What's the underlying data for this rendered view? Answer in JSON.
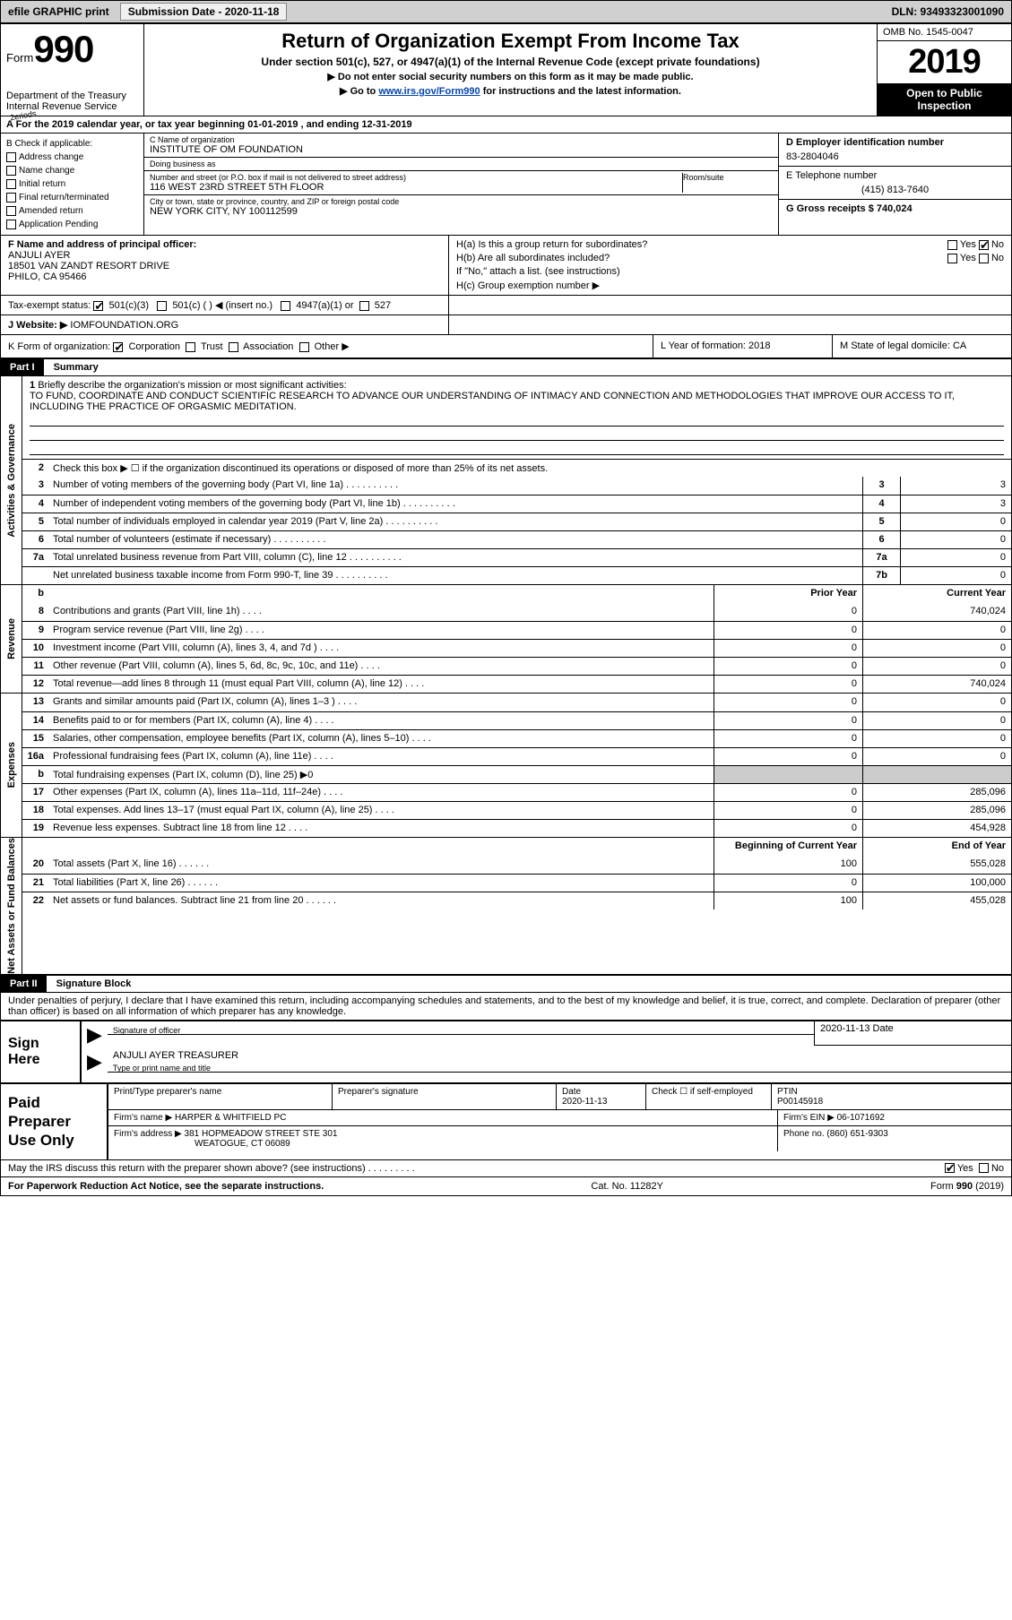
{
  "topbar": {
    "efile": "efile GRAPHIC print",
    "submission_label": "Submission Date - 2020-11-18",
    "dln": "DLN: 93493323001090"
  },
  "header": {
    "form_prefix": "Form",
    "form_number": "990",
    "dept": "Department of the Treasury",
    "irs": "Internal Revenue Service",
    "title": "Return of Organization Exempt From Income Tax",
    "sub1": "Under section 501(c), 527, or 4947(a)(1) of the Internal Revenue Code (except private foundations)",
    "sub2": "▶ Do not enter social security numbers on this form as it may be made public.",
    "sub3_pre": "▶ Go to ",
    "sub3_link": "www.irs.gov/Form990",
    "sub3_post": " for instructions and the latest information.",
    "omb": "OMB No. 1545-0047",
    "year": "2019",
    "inspection1": "Open to Public",
    "inspection2": "Inspection"
  },
  "period": {
    "overlay": "2eriods",
    "text": "A For the 2019 calendar year, or tax year beginning 01-01-2019     , and ending 12-31-2019"
  },
  "boxB": {
    "title": "B Check if applicable:",
    "items": [
      "Address change",
      "Name change",
      "Initial return",
      "Final return/terminated",
      "Amended return",
      "Application Pending"
    ]
  },
  "boxC": {
    "name_lbl": "C Name of organization",
    "name": "INSTITUTE OF OM FOUNDATION",
    "dba_lbl": "Doing business as",
    "dba": "",
    "addr_lbl": "Number and street (or P.O. box if mail is not delivered to street address)",
    "room_lbl": "Room/suite",
    "addr": "116 WEST 23RD STREET 5TH FLOOR",
    "city_lbl": "City or town, state or province, country, and ZIP or foreign postal code",
    "city": "NEW YORK CITY, NY  100112599"
  },
  "boxD": {
    "lbl": "D Employer identification number",
    "val": "83-2804046"
  },
  "boxE": {
    "lbl": "E Telephone number",
    "val": "(415) 813-7640"
  },
  "boxG": {
    "lbl": "G Gross receipts $ 740,024"
  },
  "boxF": {
    "lbl": "F Name and address of principal officer:",
    "name": "ANJULI AYER",
    "addr1": "18501 VAN ZANDT RESORT DRIVE",
    "addr2": "PHILO, CA  95466"
  },
  "boxH": {
    "a": "H(a)  Is this a group return for subordinates?",
    "a_yes": "Yes",
    "a_no": "No",
    "b": "H(b)  Are all subordinates included?",
    "b_yes": "Yes",
    "b_no": "No",
    "b_note": "If \"No,\" attach a list. (see instructions)",
    "c": "H(c)  Group exemption number ▶"
  },
  "boxI": {
    "lbl": "Tax-exempt status:",
    "o1": "501(c)(3)",
    "o2": "501(c) (  ) ◀ (insert no.)",
    "o3": "4947(a)(1) or",
    "o4": "527"
  },
  "boxJ": {
    "lbl": "J   Website: ▶",
    "val": "IOMFOUNDATION.ORG"
  },
  "boxK": {
    "lbl": "K Form of organization:",
    "o1": "Corporation",
    "o2": "Trust",
    "o3": "Association",
    "o4": "Other ▶"
  },
  "boxL": {
    "lbl": "L Year of formation: 2018"
  },
  "boxM": {
    "lbl": "M State of legal domicile: CA"
  },
  "part1": {
    "hdr": "Part I",
    "title": "Summary"
  },
  "sections": {
    "ag": "Activities & Governance",
    "rev": "Revenue",
    "exp": "Expenses",
    "nab": "Net Assets or Fund Balances"
  },
  "line1": {
    "num": "1",
    "lbl": "Briefly describe the organization's mission or most significant activities:",
    "text": "TO FUND, COORDINATE AND CONDUCT SCIENTIFIC RESEARCH TO ADVANCE OUR UNDERSTANDING OF INTIMACY AND CONNECTION AND METHODOLOGIES THAT IMPROVE OUR ACCESS TO IT, INCLUDING THE PRACTICE OF ORGASMIC MEDITATION."
  },
  "line2": {
    "num": "2",
    "lbl": "Check this box ▶ ☐  if the organization discontinued its operations or disposed of more than 25% of its net assets."
  },
  "ag_lines": [
    {
      "num": "3",
      "lbl": "Number of voting members of the governing body (Part VI, line 1a)",
      "box": "3",
      "val": "3"
    },
    {
      "num": "4",
      "lbl": "Number of independent voting members of the governing body (Part VI, line 1b)",
      "box": "4",
      "val": "3"
    },
    {
      "num": "5",
      "lbl": "Total number of individuals employed in calendar year 2019 (Part V, line 2a)",
      "box": "5",
      "val": "0"
    },
    {
      "num": "6",
      "lbl": "Total number of volunteers (estimate if necessary)",
      "box": "6",
      "val": "0"
    },
    {
      "num": "7a",
      "lbl": "Total unrelated business revenue from Part VIII, column (C), line 12",
      "box": "7a",
      "val": "0"
    },
    {
      "num": "",
      "lbl": "Net unrelated business taxable income from Form 990-T, line 39",
      "box": "7b",
      "val": "0"
    }
  ],
  "col_hdrs": {
    "b": "b",
    "prior": "Prior Year",
    "current": "Current Year"
  },
  "rev_lines": [
    {
      "num": "8",
      "lbl": "Contributions and grants (Part VIII, line 1h)",
      "prior": "0",
      "cur": "740,024"
    },
    {
      "num": "9",
      "lbl": "Program service revenue (Part VIII, line 2g)",
      "prior": "0",
      "cur": "0"
    },
    {
      "num": "10",
      "lbl": "Investment income (Part VIII, column (A), lines 3, 4, and 7d )",
      "prior": "0",
      "cur": "0"
    },
    {
      "num": "11",
      "lbl": "Other revenue (Part VIII, column (A), lines 5, 6d, 8c, 9c, 10c, and 11e)",
      "prior": "0",
      "cur": "0"
    },
    {
      "num": "12",
      "lbl": "Total revenue—add lines 8 through 11 (must equal Part VIII, column (A), line 12)",
      "prior": "0",
      "cur": "740,024"
    }
  ],
  "exp_lines": [
    {
      "num": "13",
      "lbl": "Grants and similar amounts paid (Part IX, column (A), lines 1–3 )",
      "prior": "0",
      "cur": "0"
    },
    {
      "num": "14",
      "lbl": "Benefits paid to or for members (Part IX, column (A), line 4)",
      "prior": "0",
      "cur": "0"
    },
    {
      "num": "15",
      "lbl": "Salaries, other compensation, employee benefits (Part IX, column (A), lines 5–10)",
      "prior": "0",
      "cur": "0"
    },
    {
      "num": "16a",
      "lbl": "Professional fundraising fees (Part IX, column (A), line 11e)",
      "prior": "0",
      "cur": "0"
    },
    {
      "num": "b",
      "lbl": "Total fundraising expenses (Part IX, column (D), line 25) ▶0",
      "prior": "",
      "cur": "",
      "shade": true
    },
    {
      "num": "17",
      "lbl": "Other expenses (Part IX, column (A), lines 11a–11d, 11f–24e)",
      "prior": "0",
      "cur": "285,096"
    },
    {
      "num": "18",
      "lbl": "Total expenses. Add lines 13–17 (must equal Part IX, column (A), line 25)",
      "prior": "0",
      "cur": "285,096"
    },
    {
      "num": "19",
      "lbl": "Revenue less expenses. Subtract line 18 from line 12",
      "prior": "0",
      "cur": "454,928"
    }
  ],
  "nab_hdrs": {
    "beg": "Beginning of Current Year",
    "end": "End of Year"
  },
  "nab_lines": [
    {
      "num": "20",
      "lbl": "Total assets (Part X, line 16)",
      "beg": "100",
      "end": "555,028"
    },
    {
      "num": "21",
      "lbl": "Total liabilities (Part X, line 26)",
      "beg": "0",
      "end": "100,000"
    },
    {
      "num": "22",
      "lbl": "Net assets or fund balances. Subtract line 21 from line 20",
      "beg": "100",
      "end": "455,028"
    }
  ],
  "part2": {
    "hdr": "Part II",
    "title": "Signature Block"
  },
  "perjury": "Under penalties of perjury, I declare that I have examined this return, including accompanying schedules and statements, and to the best of my knowledge and belief, it is true, correct, and complete. Declaration of preparer (other than officer) is based on all information of which preparer has any knowledge.",
  "sign": {
    "here": "Sign Here",
    "sig_lbl": "Signature of officer",
    "date_lbl": "Date",
    "date": "2020-11-13",
    "name": "ANJULI AYER  TREASURER",
    "name_lbl": "Type or print name and title"
  },
  "prep": {
    "here": "Paid Preparer Use Only",
    "pt_name_lbl": "Print/Type preparer's name",
    "pt_sig_lbl": "Preparer's signature",
    "pt_date_lbl": "Date",
    "pt_date": "2020-11-13",
    "pt_check": "Check ☐ if self-employed",
    "ptin_lbl": "PTIN",
    "ptin": "P00145918",
    "firm_name_lbl": "Firm's name    ▶",
    "firm_name": "HARPER & WHITFIELD PC",
    "firm_ein_lbl": "Firm's EIN ▶",
    "firm_ein": "06-1071692",
    "firm_addr_lbl": "Firm's address ▶",
    "firm_addr1": "381 HOPMEADOW STREET STE 301",
    "firm_addr2": "WEATOGUE, CT  06089",
    "phone_lbl": "Phone no.",
    "phone": "(860) 651-9303"
  },
  "discuss": {
    "q": "May the IRS discuss this return with the preparer shown above? (see instructions)",
    "yes": "Yes",
    "no": "No"
  },
  "footer": {
    "left": "For Paperwork Reduction Act Notice, see the separate instructions.",
    "mid": "Cat. No. 11282Y",
    "right": "Form 990 (2019)"
  },
  "colors": {
    "link": "#0645ad",
    "topbar_bg": "#d0d0d0",
    "shade": "#cccccc"
  }
}
